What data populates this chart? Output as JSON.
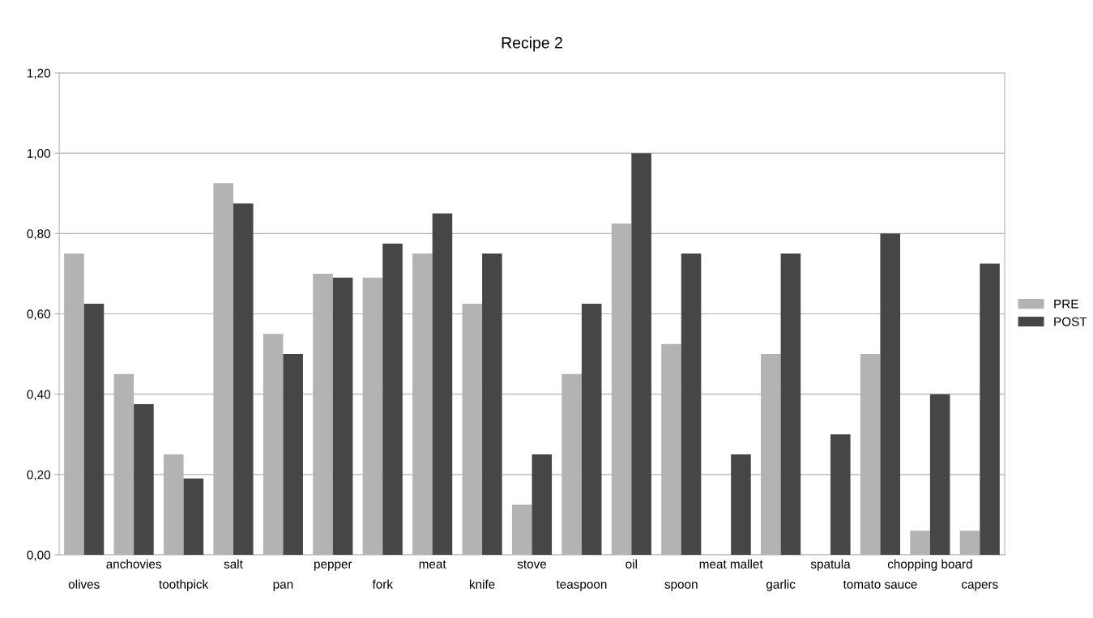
{
  "chart_data": {
    "type": "bar",
    "title": "Recipe 2",
    "categories": [
      "olives",
      "anchovies",
      "toothpick",
      "salt",
      "pan",
      "pepper",
      "fork",
      "meat",
      "knife",
      "stove",
      "teaspoon",
      "oil",
      "spoon",
      "meat mallet",
      "garlic",
      "spatula",
      "tomato sauce",
      "chopping board",
      "capers"
    ],
    "series": [
      {
        "name": "PRE",
        "color": "#b3b3b3",
        "values": [
          0.75,
          0.45,
          0.25,
          0.925,
          0.55,
          0.7,
          0.69,
          0.75,
          0.625,
          0.125,
          0.45,
          0.825,
          0.525,
          0,
          0.5,
          0,
          0.5,
          0.06,
          0.06
        ]
      },
      {
        "name": "POST",
        "color": "#464646",
        "values": [
          0.625,
          0.375,
          0.19,
          0.875,
          0.5,
          0.69,
          0.775,
          0.85,
          0.75,
          0.25,
          0.625,
          1.0,
          0.75,
          0.25,
          0.75,
          0.3,
          0.8,
          0.4,
          0.725
        ]
      }
    ],
    "ylim": [
      0,
      1.2
    ],
    "yticks": [
      {
        "value": 0,
        "label": "0,00"
      },
      {
        "value": 0.2,
        "label": "0,20"
      },
      {
        "value": 0.4,
        "label": "0,40"
      },
      {
        "value": 0.6,
        "label": "0,60"
      },
      {
        "value": 0.8,
        "label": "0,80"
      },
      {
        "value": 1.0,
        "label": "1,00"
      },
      {
        "value": 1.2,
        "label": "1,20"
      }
    ],
    "grid": "y",
    "legend": "right"
  }
}
